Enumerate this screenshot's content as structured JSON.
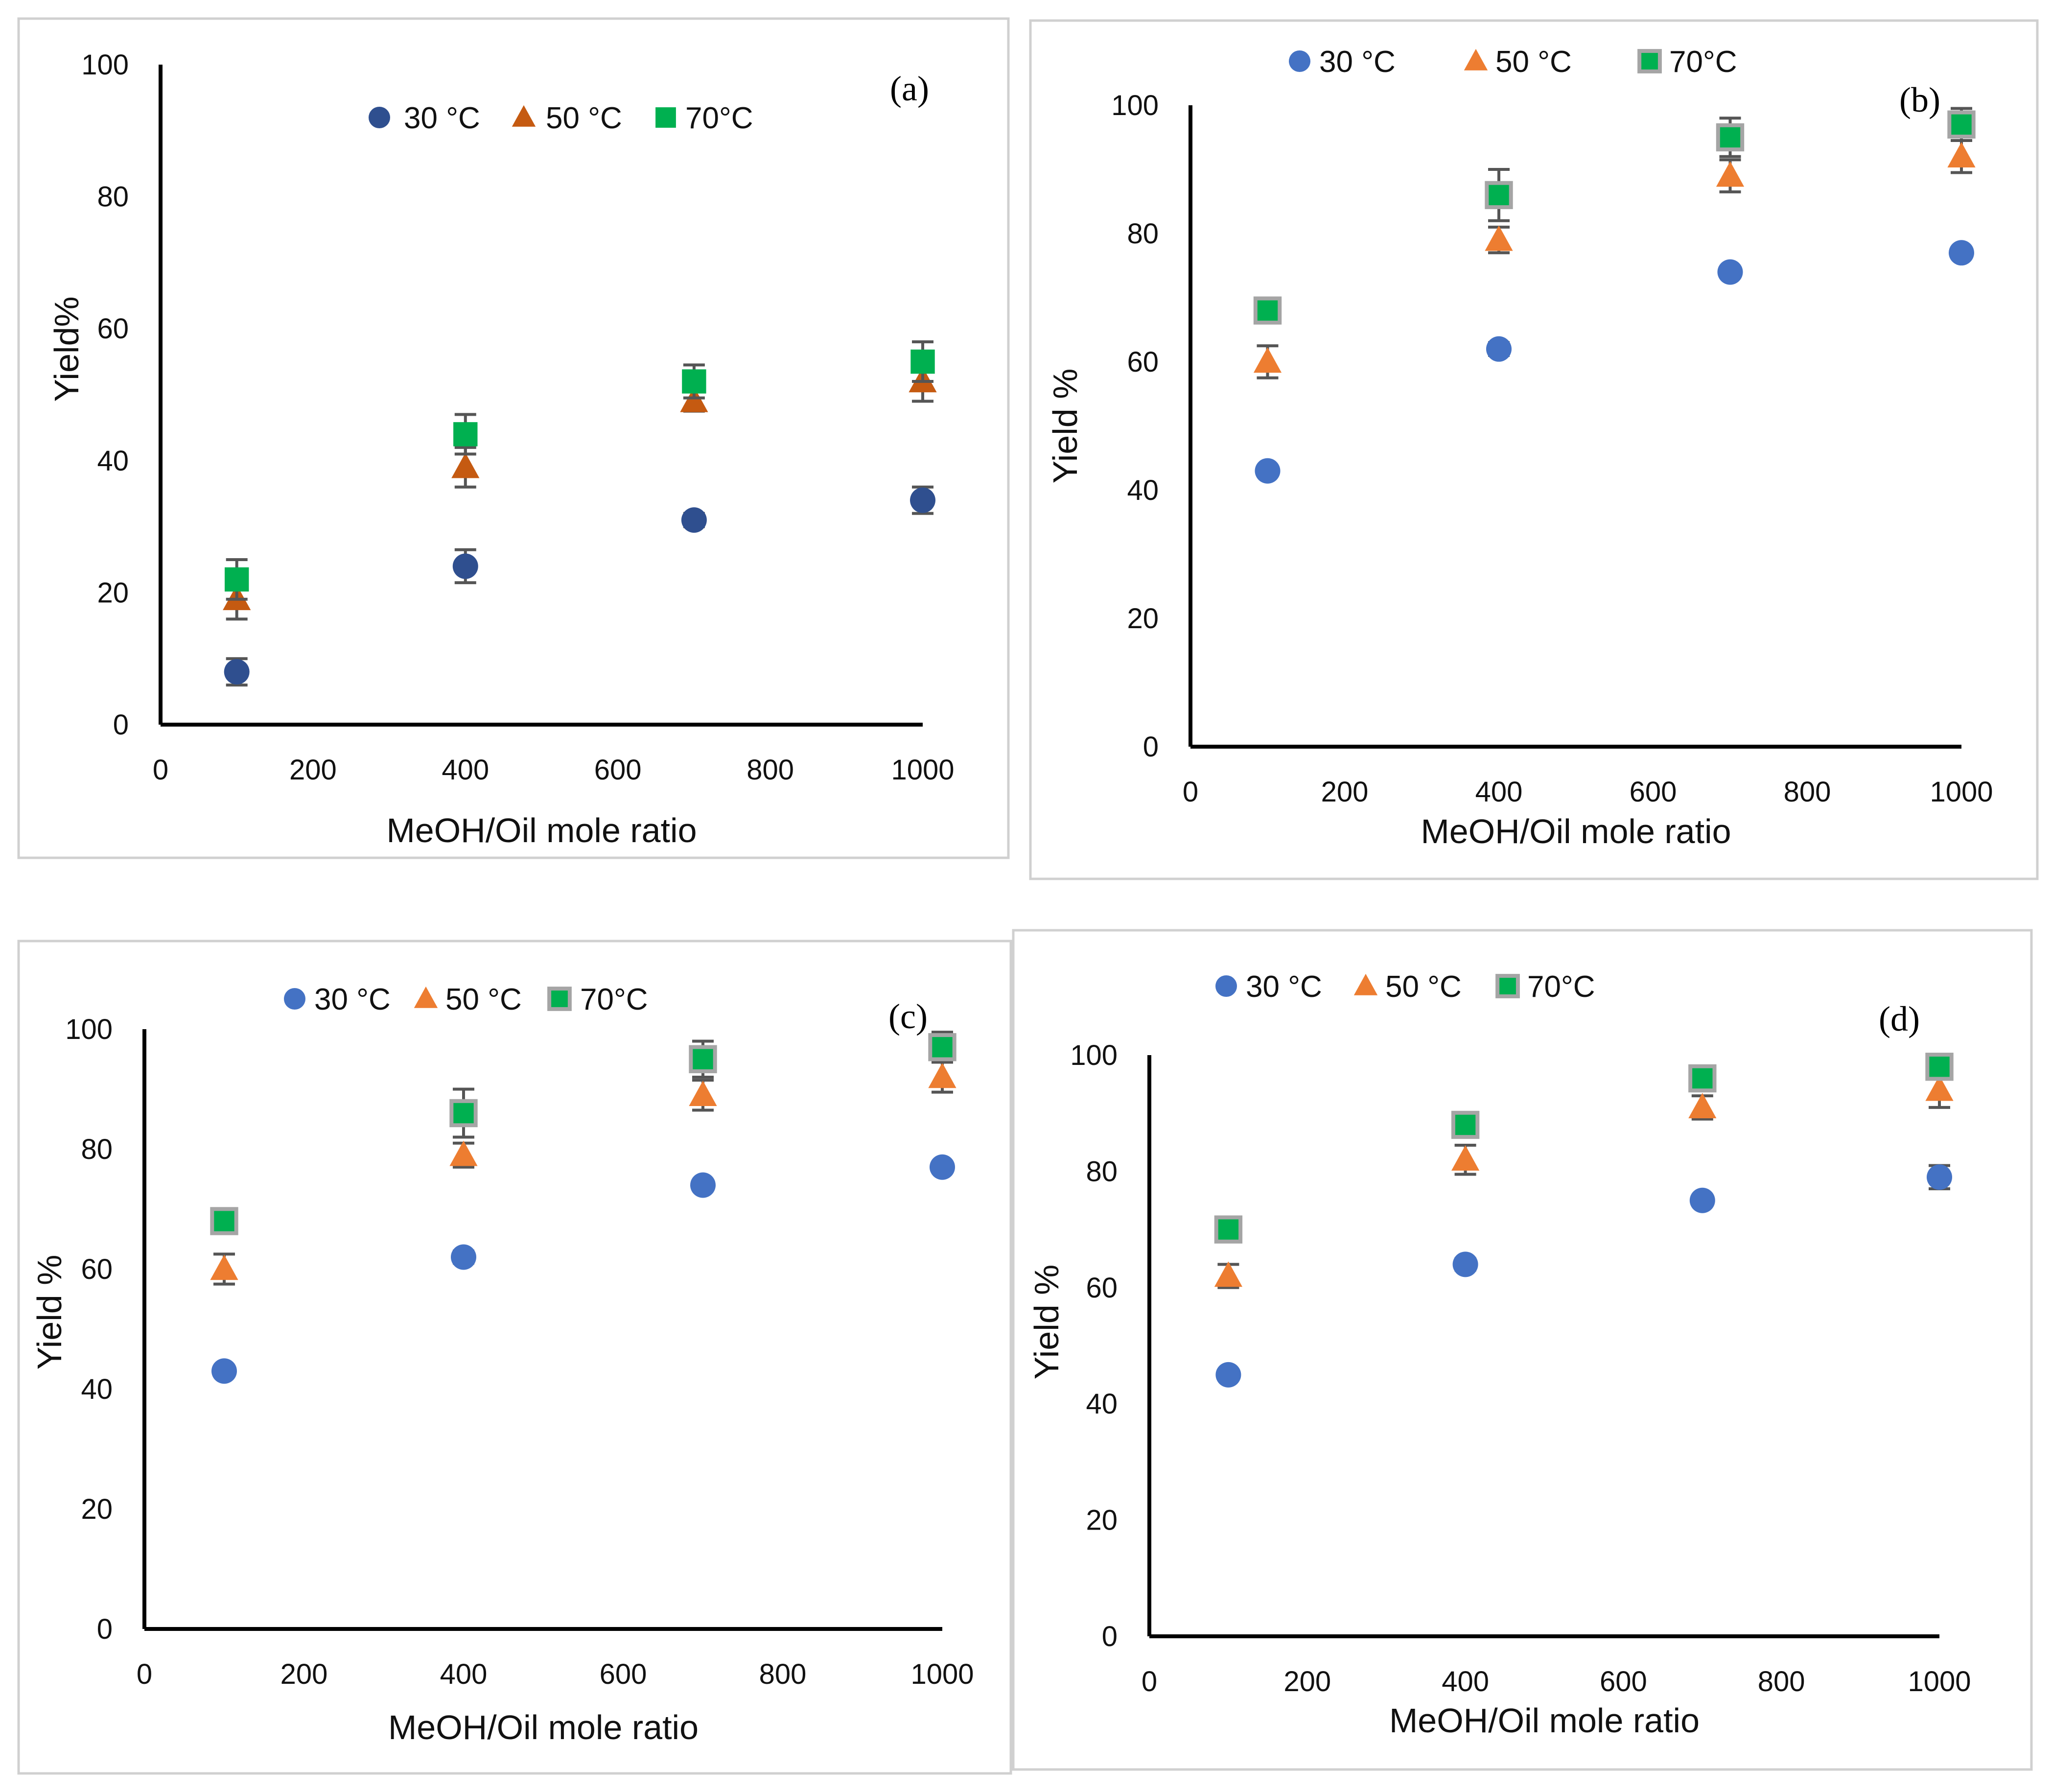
{
  "colors": {
    "panel_a": {
      "30": "#2f4f8f",
      "50": "#c55a11",
      "70": "#00b050"
    },
    "panel_bcd": {
      "30": "#4472c4",
      "50": "#ed7d31",
      "70": "#00b050"
    },
    "square_outline_bcd": "#a5a5a5",
    "error_bar": "#555555"
  },
  "chart_data": [
    {
      "type": "scatter",
      "panel_label": "(a)",
      "xlabel": "MeOH/Oil mole ratio",
      "ylabel": "Yield%",
      "xlim": [
        0,
        1000
      ],
      "ylim": [
        0,
        100
      ],
      "xticks": [
        "0",
        "200",
        "400",
        "600",
        "800",
        "1000"
      ],
      "yticks": [
        "0",
        "20",
        "40",
        "60",
        "80",
        "100"
      ],
      "legend_position": "top-center",
      "x": [
        100,
        400,
        700,
        1000
      ],
      "series": [
        {
          "name": "30 °C",
          "marker": "circle",
          "values": [
            8,
            24,
            31,
            34
          ],
          "errors": [
            2,
            2.5,
            1,
            2
          ]
        },
        {
          "name": "50 °C",
          "marker": "triangle",
          "values": [
            19,
            39,
            49,
            52
          ],
          "errors": [
            3,
            3,
            1.5,
            3
          ]
        },
        {
          "name": "70°C",
          "marker": "square",
          "values": [
            22,
            44,
            52,
            55
          ],
          "errors": [
            3,
            3,
            2.5,
            3
          ]
        }
      ]
    },
    {
      "type": "scatter",
      "panel_label": "(b)",
      "xlabel": "MeOH/Oil mole ratio",
      "ylabel": "Yield %",
      "xlim": [
        0,
        1000
      ],
      "ylim": [
        0,
        100
      ],
      "xticks": [
        "0",
        "200",
        "400",
        "600",
        "800",
        "1000"
      ],
      "yticks": [
        "0",
        "20",
        "40",
        "60",
        "80",
        "100"
      ],
      "legend_position": "top-center",
      "x": [
        100,
        400,
        700,
        1000
      ],
      "series": [
        {
          "name": "30 °C",
          "marker": "circle",
          "values": [
            43,
            62,
            74,
            77
          ],
          "errors": [
            0,
            1,
            0,
            0
          ]
        },
        {
          "name": "50 °C",
          "marker": "triangle",
          "values": [
            60,
            79,
            89,
            92
          ],
          "errors": [
            2.5,
            2,
            2.5,
            2.5
          ]
        },
        {
          "name": "70°C",
          "marker": "square",
          "values": [
            68,
            86,
            95,
            97
          ],
          "errors": [
            1,
            4,
            3,
            2.5
          ]
        }
      ]
    },
    {
      "type": "scatter",
      "panel_label": "(c)",
      "xlabel": "MeOH/Oil mole ratio",
      "ylabel": "Yield %",
      "xlim": [
        0,
        1000
      ],
      "ylim": [
        0,
        100
      ],
      "xticks": [
        "0",
        "200",
        "400",
        "600",
        "800",
        "1000"
      ],
      "yticks": [
        "0",
        "20",
        "40",
        "60",
        "80",
        "100"
      ],
      "legend_position": "top-center",
      "x": [
        100,
        400,
        700,
        1000
      ],
      "series": [
        {
          "name": "30 °C",
          "marker": "circle",
          "values": [
            43,
            62,
            74,
            77
          ],
          "errors": [
            0,
            1,
            0,
            0
          ]
        },
        {
          "name": "50 °C",
          "marker": "triangle",
          "values": [
            60,
            79,
            89,
            92
          ],
          "errors": [
            2.5,
            2,
            2.5,
            2.5
          ]
        },
        {
          "name": "70°C",
          "marker": "square",
          "values": [
            68,
            86,
            95,
            97
          ],
          "errors": [
            1,
            4,
            3,
            2.5
          ]
        }
      ]
    },
    {
      "type": "scatter",
      "panel_label": "(d)",
      "xlabel": "MeOH/Oil mole ratio",
      "ylabel": "Yield %",
      "xlim": [
        0,
        1000
      ],
      "ylim": [
        0,
        100
      ],
      "xticks": [
        "0",
        "200",
        "400",
        "600",
        "800",
        "1000"
      ],
      "yticks": [
        "0",
        "20",
        "40",
        "60",
        "80",
        "100"
      ],
      "legend_position": "top-center",
      "x": [
        100,
        400,
        700,
        1000
      ],
      "series": [
        {
          "name": "30 °C",
          "marker": "circle",
          "values": [
            45,
            64,
            75,
            79
          ],
          "errors": [
            0,
            1,
            0,
            2
          ]
        },
        {
          "name": "50 °C",
          "marker": "triangle",
          "values": [
            62,
            82,
            91,
            94
          ],
          "errors": [
            2,
            2.5,
            2,
            3
          ]
        },
        {
          "name": "70°C",
          "marker": "square",
          "values": [
            70,
            88,
            96,
            98
          ],
          "errors": [
            1,
            1.5,
            2,
            1.5
          ]
        }
      ]
    }
  ]
}
